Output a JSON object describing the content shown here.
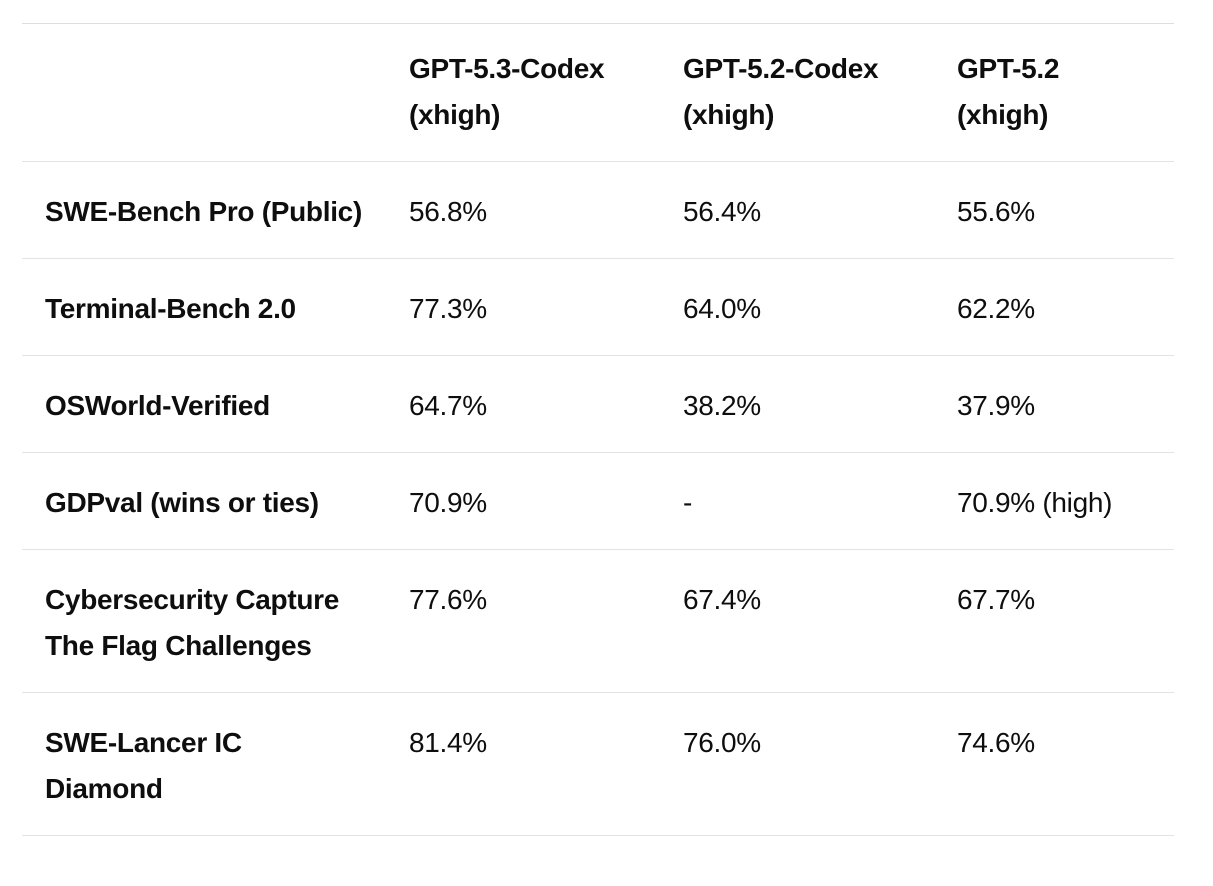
{
  "table": {
    "headers": [
      "",
      "GPT-5.3-Codex\n(xhigh)",
      "GPT-5.2-Codex\n(xhigh)",
      "GPT-5.2\n(xhigh)"
    ],
    "rows": [
      {
        "label": "SWE-Bench Pro (Public)",
        "values": [
          "56.8%",
          "56.4%",
          "55.6%"
        ]
      },
      {
        "label": "Terminal-Bench 2.0",
        "values": [
          "77.3%",
          "64.0%",
          "62.2%"
        ]
      },
      {
        "label": "OSWorld-Verified",
        "values": [
          "64.7%",
          "38.2%",
          "37.9%"
        ]
      },
      {
        "label": "GDPval (wins or ties)",
        "values": [
          "70.9%",
          "-",
          "70.9% (high)"
        ]
      },
      {
        "label": "Cybersecurity Capture\nThe Flag Challenges",
        "values": [
          "77.6%",
          "67.4%",
          "67.7%"
        ]
      },
      {
        "label": "SWE-Lancer IC\nDiamond",
        "values": [
          "81.4%",
          "76.0%",
          "74.6%"
        ]
      }
    ]
  },
  "colors": {
    "text": "#0e0e0e",
    "divider": "#e3e3e3",
    "background": "#ffffff"
  },
  "chart_data": {
    "type": "table",
    "title": "",
    "categories": [
      "SWE-Bench Pro (Public)",
      "Terminal-Bench 2.0",
      "OSWorld-Verified",
      "GDPval (wins or ties)",
      "Cybersecurity Capture The Flag Challenges",
      "SWE-Lancer IC Diamond"
    ],
    "series": [
      {
        "name": "GPT-5.3-Codex (xhigh)",
        "values": [
          56.8,
          77.3,
          64.7,
          70.9,
          77.6,
          81.4
        ]
      },
      {
        "name": "GPT-5.2-Codex (xhigh)",
        "values": [
          56.4,
          64.0,
          38.2,
          null,
          67.4,
          76.0
        ]
      },
      {
        "name": "GPT-5.2 (xhigh)",
        "values": [
          55.6,
          62.2,
          37.9,
          70.9,
          67.7,
          74.6
        ]
      }
    ],
    "notes": {
      "gdpval_gpt52_codex": "-",
      "gdpval_gpt52_suffix": "(high)"
    },
    "unit": "%"
  }
}
